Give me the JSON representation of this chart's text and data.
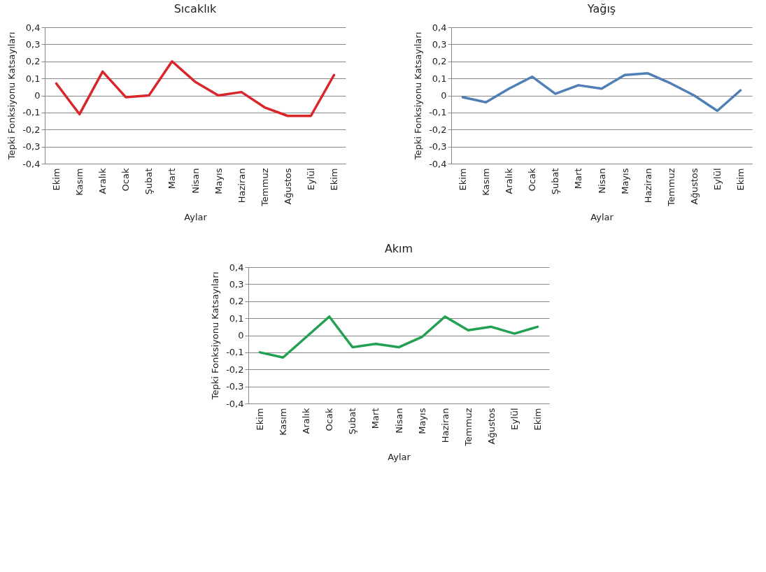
{
  "chart_data": [
    {
      "type": "line",
      "title": "Sıcaklık",
      "xlabel": "Aylar",
      "ylabel": "Tepki Fonksiyonu Katsayıları",
      "categories": [
        "Ekim",
        "Kasım",
        "Aralık",
        "Ocak",
        "Şubat",
        "Mart",
        "Nisan",
        "Mayıs",
        "Haziran",
        "Temmuz",
        "Ağustos",
        "Eylül",
        "Ekim"
      ],
      "series": [
        {
          "color": "#d9262a",
          "values": [
            0.07,
            -0.11,
            0.14,
            -0.01,
            0.0,
            0.2,
            0.08,
            0.0,
            0.02,
            -0.07,
            -0.12,
            -0.12,
            0.12
          ]
        }
      ],
      "ylim": [
        -0.4,
        0.4
      ],
      "yticks": [
        {
          "value": -0.4,
          "label": "-0,4"
        },
        {
          "value": -0.3,
          "label": "-0,3"
        },
        {
          "value": -0.2,
          "label": "-0,2"
        },
        {
          "value": -0.1,
          "label": "-0,1"
        },
        {
          "value": 0,
          "label": "0"
        },
        {
          "value": 0.1,
          "label": "0,1"
        },
        {
          "value": 0.2,
          "label": "0,2"
        },
        {
          "value": 0.3,
          "label": "0,3"
        },
        {
          "value": 0.4,
          "label": "0,4"
        }
      ],
      "grid": "y",
      "legend": false
    },
    {
      "type": "line",
      "title": "Yağış",
      "xlabel": "Aylar",
      "ylabel": "Tepki Fonksiyonu Katsayıları",
      "categories": [
        "Ekim",
        "Kasım",
        "Aralık",
        "Ocak",
        "Şubat",
        "Mart",
        "Nisan",
        "Mayıs",
        "Haziran",
        "Temmuz",
        "Ağustos",
        "Eylül",
        "Ekim"
      ],
      "series": [
        {
          "color": "#4f7fb5",
          "values": [
            -0.01,
            -0.04,
            0.04,
            0.11,
            0.01,
            0.06,
            0.04,
            0.12,
            0.13,
            0.07,
            0.0,
            -0.09,
            0.03
          ]
        }
      ],
      "ylim": [
        -0.4,
        0.4
      ],
      "yticks": [
        {
          "value": -0.4,
          "label": "-0,4"
        },
        {
          "value": -0.3,
          "label": "-0,3"
        },
        {
          "value": -0.2,
          "label": "-0,2"
        },
        {
          "value": -0.1,
          "label": "-0,1"
        },
        {
          "value": 0,
          "label": "0"
        },
        {
          "value": 0.1,
          "label": "0,1"
        },
        {
          "value": 0.2,
          "label": "0,2"
        },
        {
          "value": 0.3,
          "label": "0,3"
        },
        {
          "value": 0.4,
          "label": "0,4"
        }
      ],
      "grid": "y",
      "legend": false
    },
    {
      "type": "line",
      "title": "Akım",
      "xlabel": "Aylar",
      "ylabel": "Tepki Fonksiyonu Katsayıları",
      "categories": [
        "Ekim",
        "Kasım",
        "Aralık",
        "Ocak",
        "Şubat",
        "Mart",
        "Nisan",
        "Mayıs",
        "Haziran",
        "Temmuz",
        "Ağustos",
        "Eylül",
        "Ekim"
      ],
      "series": [
        {
          "color": "#23a052",
          "values": [
            -0.1,
            -0.13,
            -0.01,
            0.11,
            -0.07,
            -0.05,
            -0.07,
            -0.01,
            0.11,
            0.03,
            0.05,
            0.01,
            0.05
          ]
        }
      ],
      "ylim": [
        -0.4,
        0.4
      ],
      "yticks": [
        {
          "value": -0.4,
          "label": "-0,4"
        },
        {
          "value": -0.3,
          "label": "-0,3"
        },
        {
          "value": -0.2,
          "label": "-0,2"
        },
        {
          "value": -0.1,
          "label": "-0,1"
        },
        {
          "value": 0,
          "label": "0"
        },
        {
          "value": 0.1,
          "label": "0,1"
        },
        {
          "value": 0.2,
          "label": "0,2"
        },
        {
          "value": 0.3,
          "label": "0,3"
        },
        {
          "value": 0.4,
          "label": "0,4"
        }
      ],
      "grid": "y",
      "legend": false
    }
  ]
}
